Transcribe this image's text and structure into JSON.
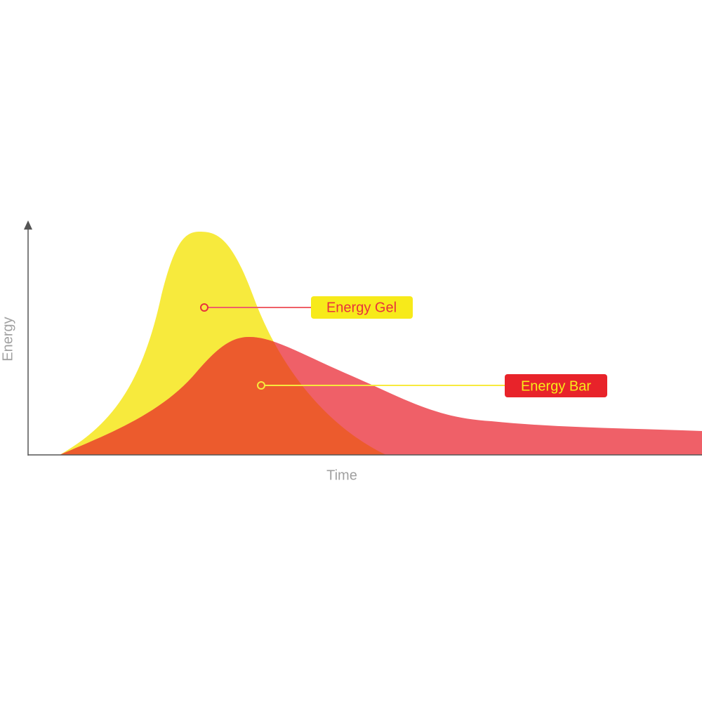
{
  "axes": {
    "y_label": "Energy",
    "x_label": "Time"
  },
  "labels": [
    {
      "text": "Energy Gel"
    },
    {
      "text": "Energy Bar"
    }
  ]
}
